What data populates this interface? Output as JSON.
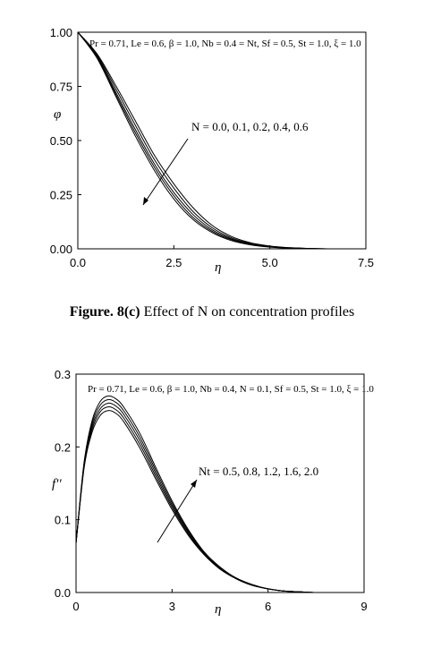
{
  "chart_data": [
    {
      "type": "line",
      "xlabel": "η",
      "ylabel": "φ",
      "xlim": [
        0,
        7.5
      ],
      "ylim": [
        0,
        1
      ],
      "xticks": [
        "0.0",
        "2.5",
        "5.0",
        "7.5"
      ],
      "yticks": [
        "0.00",
        "0.25",
        "0.50",
        "0.75",
        "1.00"
      ],
      "annotation_params": "Pr = 0.71, Le = 0.6, β = 1.0, Nb = 0.4 = Nt, Sf = 0.5, St = 1.0, ξ = 1.0",
      "annotation_varied": "N = 0.0, 0.1, 0.2, 0.4, 0.6",
      "caption_bold": "Figure. 8(c)",
      "caption_text": " Effect of N on concentration profiles",
      "x": [
        0,
        0.5,
        1.0,
        1.5,
        2.0,
        2.5,
        3.0,
        3.5,
        4.0,
        4.5,
        5.0,
        5.5,
        6.0,
        6.5,
        7.0,
        7.5
      ],
      "series": [
        {
          "values": [
            1.0,
            0.88,
            0.7,
            0.52,
            0.36,
            0.23,
            0.135,
            0.075,
            0.038,
            0.018,
            0.008,
            0.003,
            0.001,
            0.0,
            0.0,
            0.0
          ]
        },
        {
          "values": [
            1.0,
            0.885,
            0.71,
            0.535,
            0.375,
            0.245,
            0.145,
            0.081,
            0.042,
            0.02,
            0.009,
            0.004,
            0.001,
            0.0,
            0.0,
            0.0
          ]
        },
        {
          "values": [
            1.0,
            0.89,
            0.72,
            0.55,
            0.39,
            0.26,
            0.158,
            0.088,
            0.046,
            0.022,
            0.01,
            0.004,
            0.001,
            0.0,
            0.0,
            0.0
          ]
        },
        {
          "values": [
            1.0,
            0.895,
            0.735,
            0.57,
            0.41,
            0.28,
            0.172,
            0.097,
            0.051,
            0.025,
            0.011,
            0.005,
            0.002,
            0.0,
            0.0,
            0.0
          ]
        },
        {
          "values": [
            1.0,
            0.9,
            0.75,
            0.59,
            0.43,
            0.3,
            0.19,
            0.108,
            0.057,
            0.028,
            0.013,
            0.005,
            0.002,
            0.0,
            0.0,
            0.0
          ]
        }
      ]
    },
    {
      "type": "line",
      "xlabel": "η",
      "ylabel": "f''",
      "xlim": [
        0,
        9
      ],
      "ylim": [
        0,
        0.3
      ],
      "xticks": [
        "0",
        "3",
        "6",
        "9"
      ],
      "yticks": [
        "0.0",
        "0.1",
        "0.2",
        "0.3"
      ],
      "annotation_params": "Pr = 0.71, Le = 0.6, β = 1.0, Nb = 0.4, N = 0.1, Sf = 0.5, St = 1.0, ξ = 1.0",
      "annotation_varied": "Nt = 0.5, 0.8, 1.2, 1.6, 2.0",
      "x": [
        0,
        0.25,
        0.5,
        0.75,
        1.0,
        1.25,
        1.5,
        2.0,
        2.5,
        3.0,
        3.5,
        4.0,
        4.5,
        5.0,
        5.5,
        6.0,
        6.5,
        7.0,
        7.5,
        8.0,
        8.5,
        9.0
      ],
      "series": [
        {
          "values": [
            0.068,
            0.17,
            0.22,
            0.243,
            0.25,
            0.246,
            0.234,
            0.198,
            0.155,
            0.114,
            0.079,
            0.052,
            0.032,
            0.019,
            0.01,
            0.005,
            0.002,
            0.001,
            0.0,
            0.0,
            0.0,
            0.0
          ]
        },
        {
          "values": [
            0.068,
            0.172,
            0.224,
            0.248,
            0.255,
            0.251,
            0.239,
            0.203,
            0.159,
            0.117,
            0.081,
            0.053,
            0.033,
            0.019,
            0.01,
            0.005,
            0.002,
            0.001,
            0.0,
            0.0,
            0.0,
            0.0
          ]
        },
        {
          "values": [
            0.068,
            0.174,
            0.228,
            0.252,
            0.26,
            0.256,
            0.244,
            0.208,
            0.163,
            0.12,
            0.083,
            0.054,
            0.033,
            0.019,
            0.01,
            0.005,
            0.002,
            0.001,
            0.0,
            0.0,
            0.0,
            0.0
          ]
        },
        {
          "values": [
            0.068,
            0.176,
            0.232,
            0.257,
            0.265,
            0.261,
            0.249,
            0.213,
            0.167,
            0.123,
            0.085,
            0.055,
            0.034,
            0.02,
            0.011,
            0.005,
            0.002,
            0.001,
            0.0,
            0.0,
            0.0,
            0.0
          ]
        },
        {
          "values": [
            0.068,
            0.178,
            0.236,
            0.262,
            0.27,
            0.266,
            0.254,
            0.218,
            0.171,
            0.126,
            0.087,
            0.056,
            0.035,
            0.02,
            0.011,
            0.005,
            0.002,
            0.001,
            0.0,
            0.0,
            0.0,
            0.0
          ]
        }
      ]
    }
  ]
}
